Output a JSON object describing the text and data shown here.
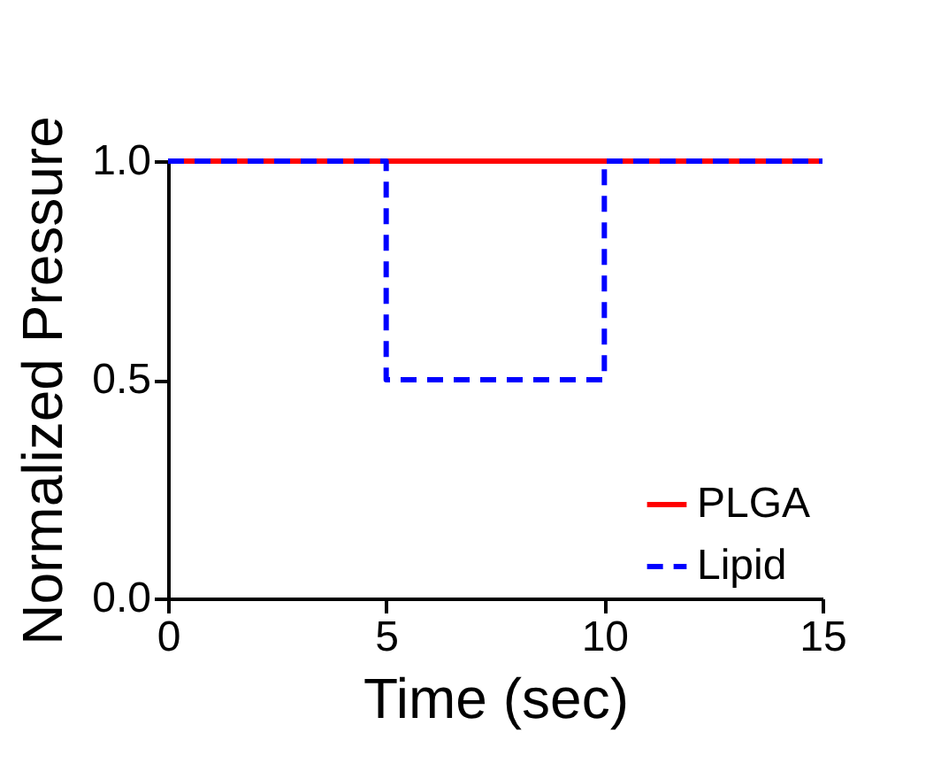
{
  "chart_data": {
    "type": "line",
    "xlabel": "Time (sec)",
    "ylabel": "Normalized  Pressure",
    "xlim": [
      0,
      15
    ],
    "xticks": [
      0,
      5,
      10,
      15
    ],
    "ylim": [
      0,
      1
    ],
    "yticks": [
      {
        "value": 0,
        "label": "0.0"
      },
      {
        "value": 0.5,
        "label": "0.5"
      },
      {
        "value": 1,
        "label": "1.0"
      }
    ],
    "legend": "bottom right",
    "marker": "none",
    "series": [
      {
        "name": "PLGA",
        "color": "#ff0000",
        "line_style": "solid",
        "x": [
          0,
          15
        ],
        "values": [
          1,
          1
        ]
      },
      {
        "name": "Lipid",
        "color": "#0000ff",
        "line_style": "dashed",
        "x": [
          0,
          5,
          5,
          10,
          10,
          15
        ],
        "values": [
          1,
          1,
          0.5,
          0.5,
          1,
          1
        ]
      }
    ]
  }
}
